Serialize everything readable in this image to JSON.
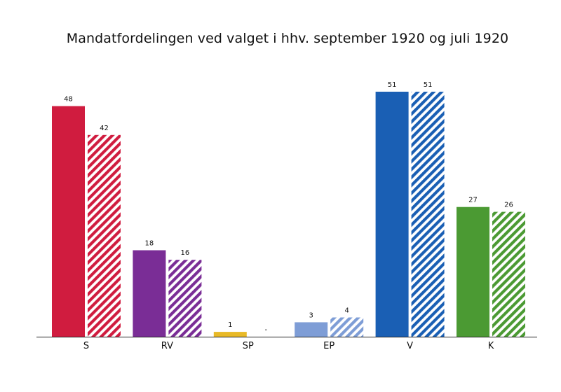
{
  "chart_data": {
    "type": "bar",
    "title": "Mandatfordelingen ved valget i hhv. september 1920 og juli 1920",
    "xlabel": "",
    "ylabel": "",
    "categories": [
      "S",
      "RV",
      "SP",
      "EP",
      "V",
      "K"
    ],
    "colors": [
      "#d01c3f",
      "#7a2d96",
      "#e8b927",
      "#7e9dd6",
      "#1a5fb4",
      "#4b9a33"
    ],
    "series": [
      {
        "style": "solid",
        "values": [
          48,
          18,
          1,
          3,
          51,
          27
        ],
        "labels": [
          "48",
          "18",
          "1",
          "3",
          "51",
          "27"
        ]
      },
      {
        "style": "hatched",
        "values": [
          42,
          16,
          0,
          4,
          51,
          26
        ],
        "labels": [
          "42",
          "16",
          "-",
          "4",
          "51",
          "26"
        ]
      }
    ],
    "ylim": [
      0,
      51
    ],
    "grid": false,
    "legend": "none"
  }
}
